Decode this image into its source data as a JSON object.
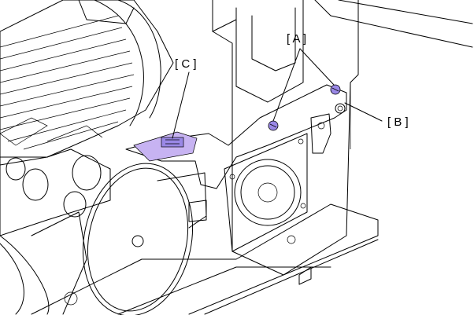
{
  "callouts": {
    "a": {
      "label": "[ A ]"
    },
    "b": {
      "label": "[ B ]"
    },
    "c": {
      "label": "[ C ]"
    }
  },
  "colors": {
    "highlight_screw": "#9a88e6",
    "highlight_connector": "#c7b3f2",
    "plate_fill": "#d3d3d3",
    "line": "#000000",
    "background": "#ffffff"
  },
  "components": [
    "mounting-plate",
    "screws",
    "connector-tab",
    "cooling-fan",
    "roller",
    "belt-pulley",
    "rail-housing"
  ]
}
